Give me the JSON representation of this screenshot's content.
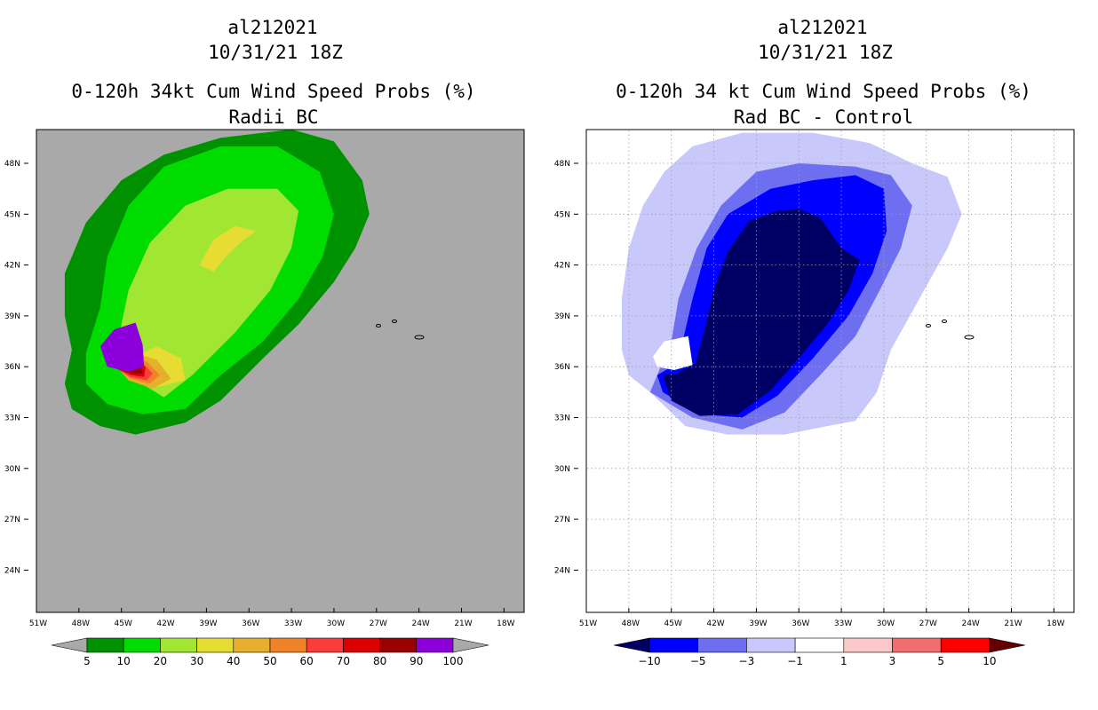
{
  "chart_data": [
    {
      "type": "heatmap",
      "storm_id": "al212021",
      "datetime": "10/31/21 18Z",
      "title": "0-120h 34kt Cum Wind Speed Probs (%)",
      "subtitle": "Radii BC",
      "x_ticks": [
        "51W",
        "48W",
        "45W",
        "42W",
        "39W",
        "36W",
        "33W",
        "30W",
        "27W",
        "24W",
        "21W",
        "18W"
      ],
      "y_ticks": [
        "48N",
        "45N",
        "42N",
        "39N",
        "36N",
        "33N",
        "30N",
        "27N",
        "24N"
      ],
      "x_range": [
        -52.5,
        -18
      ],
      "y_range": [
        21.5,
        49.5
      ],
      "background": "#a9a9a9",
      "colorbar": {
        "labels": [
          "5",
          "10",
          "20",
          "30",
          "40",
          "50",
          "60",
          "70",
          "80",
          "90",
          "100"
        ],
        "colors": [
          "#009100",
          "#00dc00",
          "#a0e632",
          "#e6dc32",
          "#e6af2d",
          "#f08228",
          "#fa3c3c",
          "#dc0000",
          "#9b0000",
          "#8c00dc"
        ],
        "under_color": "#a9a9a9",
        "over_color": "#a9a9a9"
      },
      "levels": [
        {
          "min": 5,
          "color": "#009100",
          "outline": [
            [
              -48.5,
              37
            ],
            [
              -49,
              35
            ],
            [
              -48.5,
              33.5
            ],
            [
              -46.5,
              32.5
            ],
            [
              -44,
              32
            ],
            [
              -40.5,
              32.7
            ],
            [
              -38,
              34
            ],
            [
              -35,
              36.5
            ],
            [
              -32.5,
              38.5
            ],
            [
              -30,
              41
            ],
            [
              -28.5,
              43
            ],
            [
              -27.5,
              45
            ],
            [
              -28,
              47
            ],
            [
              -30,
              49.3
            ],
            [
              -33,
              50
            ],
            [
              -38,
              49.5
            ],
            [
              -42,
              48.5
            ],
            [
              -45,
              47
            ],
            [
              -47.5,
              44.5
            ],
            [
              -49,
              41.5
            ],
            [
              -49,
              39
            ]
          ]
        },
        {
          "min": 10,
          "color": "#00dc00",
          "outline": [
            [
              -47.5,
              36.8
            ],
            [
              -47.5,
              35
            ],
            [
              -46,
              33.8
            ],
            [
              -43.5,
              33.2
            ],
            [
              -40.5,
              33.5
            ],
            [
              -38,
              35.5
            ],
            [
              -35,
              37.5
            ],
            [
              -32.5,
              40
            ],
            [
              -30.8,
              42.5
            ],
            [
              -30,
              45
            ],
            [
              -31,
              47.5
            ],
            [
              -34,
              49
            ],
            [
              -38,
              49
            ],
            [
              -42,
              47.8
            ],
            [
              -44.5,
              45.5
            ],
            [
              -46,
              42.5
            ],
            [
              -46.5,
              39.5
            ]
          ]
        },
        {
          "min": 20,
          "color": "#a0e632",
          "outline": [
            [
              -45.5,
              36
            ],
            [
              -42,
              34.2
            ],
            [
              -40,
              35.5
            ],
            [
              -37,
              38
            ],
            [
              -34.5,
              40.5
            ],
            [
              -33,
              43
            ],
            [
              -32.5,
              45.2
            ],
            [
              -34,
              46.5
            ],
            [
              -37.5,
              46.5
            ],
            [
              -40.5,
              45.5
            ],
            [
              -43,
              43.3
            ],
            [
              -44.5,
              40.5
            ],
            [
              -45,
              38.5
            ]
          ]
        },
        {
          "min": 30,
          "color": "#e6dc32",
          "outline": [
            [
              -44.3,
              36.5
            ],
            [
              -42.5,
              34.8
            ],
            [
              -40.5,
              35.2
            ],
            [
              -40.8,
              36.5
            ],
            [
              -42.5,
              37.2
            ]
          ]
        },
        {
          "min": 30,
          "color": "#e6dc32",
          "outline": [
            [
              -39.5,
              42
            ],
            [
              -38.5,
              43.5
            ],
            [
              -37,
              44.3
            ],
            [
              -35.5,
              44
            ],
            [
              -36.5,
              43.4
            ],
            [
              -37.5,
              42.6
            ],
            [
              -38.5,
              41.6
            ]
          ]
        },
        {
          "min": 40,
          "color": "#e6af2d",
          "outline": [
            [
              -45.5,
              36.2
            ],
            [
              -44.5,
              35.2
            ],
            [
              -42.8,
              34.7
            ],
            [
              -41.5,
              35.3
            ],
            [
              -42.5,
              36.4
            ],
            [
              -44,
              36.8
            ]
          ]
        },
        {
          "min": 50,
          "color": "#f08228",
          "outline": [
            [
              -45.5,
              36.1
            ],
            [
              -44.4,
              35.3
            ],
            [
              -43,
              35
            ],
            [
              -42.3,
              35.5
            ],
            [
              -43.2,
              36.3
            ],
            [
              -44.5,
              36.6
            ]
          ]
        },
        {
          "min": 60,
          "color": "#fa3c3c",
          "outline": [
            [
              -45.5,
              36
            ],
            [
              -44.4,
              35.4
            ],
            [
              -43.2,
              35.2
            ],
            [
              -42.8,
              35.6
            ],
            [
              -43.6,
              36.3
            ],
            [
              -44.8,
              36.5
            ]
          ]
        },
        {
          "min": 70,
          "color": "#dc0000",
          "outline": [
            [
              -45.4,
              35.9
            ],
            [
              -44.3,
              35.5
            ],
            [
              -43.4,
              35.4
            ],
            [
              -43.3,
              36
            ],
            [
              -44.3,
              36.4
            ]
          ]
        },
        {
          "min": 90,
          "color": "#9b0000",
          "outline": [
            [
              -45.5,
              36
            ],
            [
              -44.2,
              35.6
            ],
            [
              -43.5,
              35.6
            ],
            [
              -43.6,
              36.3
            ],
            [
              -44.8,
              36.5
            ]
          ]
        },
        {
          "min": 100,
          "color": "#8c00dc",
          "outline": [
            [
              -46.5,
              37.2
            ],
            [
              -45.5,
              38.2
            ],
            [
              -44,
              38.6
            ],
            [
              -43.5,
              37.3
            ],
            [
              -43.4,
              36
            ],
            [
              -44.5,
              35.7
            ],
            [
              -46,
              36
            ]
          ]
        }
      ]
    },
    {
      "type": "heatmap",
      "storm_id": "al212021",
      "datetime": "10/31/21 18Z",
      "title": "0-120h 34 kt Cum Wind Speed Probs (%)",
      "subtitle": "Rad BC - Control",
      "x_ticks": [
        "51W",
        "48W",
        "45W",
        "42W",
        "39W",
        "36W",
        "33W",
        "30W",
        "27W",
        "24W",
        "21W",
        "18W"
      ],
      "y_ticks": [
        "48N",
        "45N",
        "42N",
        "39N",
        "36N",
        "33N",
        "30N",
        "27N",
        "24N"
      ],
      "x_range": [
        -52.5,
        -18
      ],
      "y_range": [
        21.5,
        49.5
      ],
      "background": "#ffffff",
      "colorbar": {
        "labels": [
          "-10",
          "-5",
          "-3",
          "-1",
          "1",
          "3",
          "5",
          "10"
        ],
        "colors": [
          "#0000ff",
          "#6e6ef0",
          "#c8c8fa",
          "#ffffff",
          "#fac8c8",
          "#f06e6e",
          "#ff0000"
        ],
        "under_color": "#000064",
        "over_color": "#640000"
      },
      "levels": [
        {
          "max": -1,
          "color": "#c8c8fa",
          "outline": [
            [
              -46.5,
              34.5
            ],
            [
              -48,
              35.5
            ],
            [
              -48.5,
              37
            ],
            [
              -48.5,
              40
            ],
            [
              -48,
              43
            ],
            [
              -47,
              45.5
            ],
            [
              -45.5,
              47.5
            ],
            [
              -43.5,
              49
            ],
            [
              -40,
              49.8
            ],
            [
              -35,
              49.8
            ],
            [
              -31,
              49.2
            ],
            [
              -28,
              48
            ],
            [
              -25.5,
              47.2
            ],
            [
              -24.5,
              45
            ],
            [
              -25.5,
              43
            ],
            [
              -27.5,
              40
            ],
            [
              -29.5,
              37
            ],
            [
              -30.5,
              34.5
            ],
            [
              -32,
              32.8
            ],
            [
              -34,
              32.5
            ],
            [
              -37,
              32
            ],
            [
              -41,
              32
            ],
            [
              -44,
              32.5
            ]
          ]
        },
        {
          "max": -3,
          "color": "#6e6ef0",
          "outline": [
            [
              -46,
              35.5
            ],
            [
              -46.5,
              34.5
            ],
            [
              -43.5,
              33
            ],
            [
              -40,
              32.3
            ],
            [
              -37,
              33.3
            ],
            [
              -34.5,
              35.5
            ],
            [
              -32,
              37.8
            ],
            [
              -30.3,
              40.5
            ],
            [
              -28.8,
              43
            ],
            [
              -28,
              45.5
            ],
            [
              -29.5,
              47.3
            ],
            [
              -32,
              47.8
            ],
            [
              -36,
              48
            ],
            [
              -39,
              47.5
            ],
            [
              -41.5,
              45.5
            ],
            [
              -43.2,
              43
            ],
            [
              -44.5,
              40
            ],
            [
              -45,
              37.5
            ]
          ]
        },
        {
          "max": -5,
          "color": "#0000ff",
          "outline": [
            [
              -46,
              35.5
            ],
            [
              -45.6,
              34.5
            ],
            [
              -43,
              33.2
            ],
            [
              -40,
              33
            ],
            [
              -37.5,
              34.3
            ],
            [
              -35,
              36.5
            ],
            [
              -32.5,
              39
            ],
            [
              -30.8,
              41.5
            ],
            [
              -29.8,
              44
            ],
            [
              -30,
              46.5
            ],
            [
              -32,
              47.3
            ],
            [
              -35,
              47
            ],
            [
              -38,
              46.5
            ],
            [
              -41,
              45
            ],
            [
              -42.5,
              43
            ],
            [
              -43.5,
              40
            ],
            [
              -44.2,
              37.5
            ],
            [
              -45,
              36
            ]
          ]
        },
        {
          "max": -10,
          "color": "#000064",
          "outline": [
            [
              -45.6,
              35.5
            ],
            [
              -45,
              34
            ],
            [
              -43,
              33.1
            ],
            [
              -40.3,
              33.2
            ],
            [
              -38,
              34.6
            ],
            [
              -36,
              36.5
            ],
            [
              -34,
              38.5
            ],
            [
              -32.5,
              40.5
            ],
            [
              -31.7,
              42.3
            ],
            [
              -33,
              43
            ],
            [
              -34.5,
              44.8
            ],
            [
              -36,
              45.3
            ],
            [
              -37.5,
              45.2
            ],
            [
              -39.5,
              44.6
            ],
            [
              -41,
              42.8
            ],
            [
              -42,
              40.5
            ],
            [
              -42.7,
              38
            ],
            [
              -43.3,
              36.2
            ],
            [
              -44.6,
              35.6
            ]
          ]
        },
        {
          "max": 0,
          "color": "#ffffff",
          "outline": [
            [
              -46.3,
              36.6
            ],
            [
              -45.5,
              37.5
            ],
            [
              -43.8,
              37.8
            ],
            [
              -43.5,
              36.1
            ],
            [
              -44.8,
              35.8
            ],
            [
              -46,
              36
            ]
          ]
        }
      ]
    }
  ]
}
